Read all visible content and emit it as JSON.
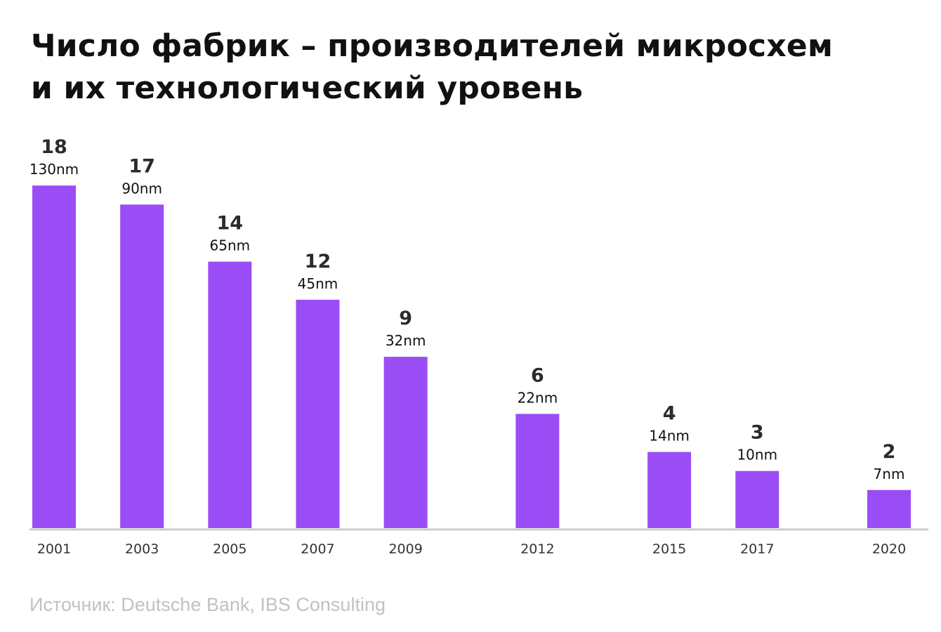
{
  "header": {
    "title_line1": "Число фабрик – производителей микросхем",
    "title_line2": "и их технологический уровень"
  },
  "footer": {
    "source": "Источник: Deutsche Bank, IBS Consulting"
  },
  "colors": {
    "bar": "#9b4df5",
    "axis": "#cccccc",
    "text": "#111111",
    "source": "#c2c2c2"
  },
  "chart_data": {
    "type": "bar",
    "categories": [
      "2001",
      "2003",
      "2005",
      "2007",
      "2009",
      "2012",
      "2015",
      "2017",
      "2020"
    ],
    "values": [
      18,
      17,
      14,
      12,
      9,
      6,
      4,
      3,
      2
    ],
    "labels": [
      "130nm",
      "90nm",
      "65nm",
      "45nm",
      "32nm",
      "22nm",
      "14nm",
      "10nm",
      "7nm"
    ],
    "title": "Число фабрик – производителей микросхем и их технологический уровень",
    "xlabel": "",
    "ylabel": "",
    "ylim": [
      0,
      18
    ],
    "grid": false,
    "x_axis": "time-proportional (years)"
  }
}
